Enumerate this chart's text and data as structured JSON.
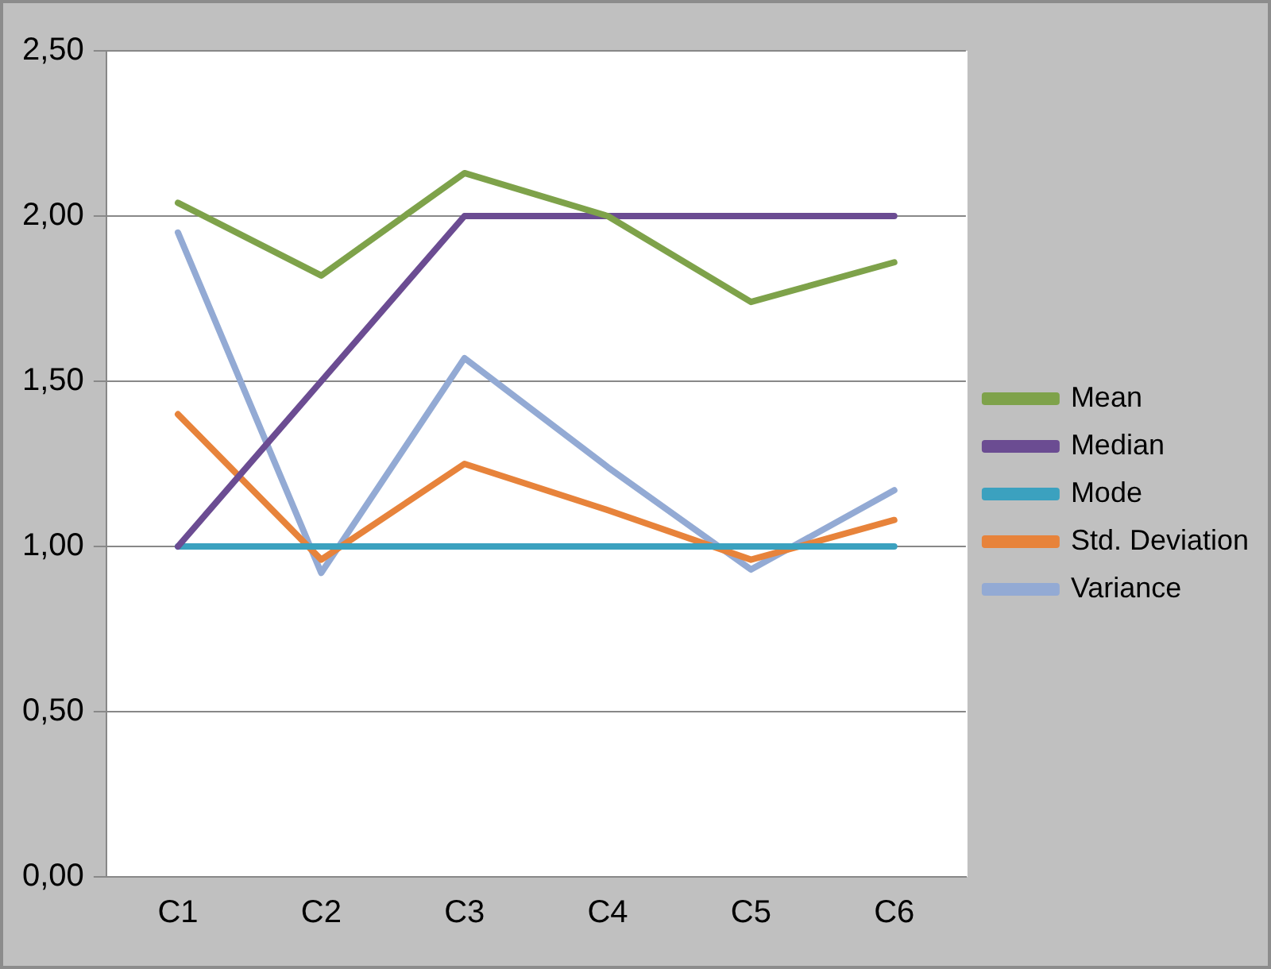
{
  "chart_data": {
    "type": "line",
    "categories": [
      "C1",
      "C2",
      "C3",
      "C4",
      "C5",
      "C6"
    ],
    "series": [
      {
        "name": "Mean",
        "color": "#7ea24a",
        "values": [
          2.04,
          1.82,
          2.13,
          2.0,
          1.74,
          1.86
        ]
      },
      {
        "name": "Median",
        "color": "#6b4c92",
        "values": [
          1.0,
          1.5,
          2.0,
          2.0,
          2.0,
          2.0
        ]
      },
      {
        "name": "Mode",
        "color": "#3ba1bf",
        "values": [
          1.0,
          1.0,
          1.0,
          1.0,
          1.0,
          1.0
        ]
      },
      {
        "name": "Std. Deviation",
        "color": "#e7833b",
        "values": [
          1.4,
          0.96,
          1.25,
          1.11,
          0.96,
          1.08
        ]
      },
      {
        "name": "Variance",
        "color": "#93aad4",
        "values": [
          1.95,
          0.92,
          1.57,
          1.24,
          0.93,
          1.17
        ]
      }
    ],
    "ylim": [
      0,
      2.5
    ],
    "yticks": [
      {
        "value": 0,
        "label": "0,00"
      },
      {
        "value": 0.5,
        "label": "0,50"
      },
      {
        "value": 1,
        "label": "1,00"
      },
      {
        "value": 1.5,
        "label": "1,50"
      },
      {
        "value": 2,
        "label": "2,00"
      },
      {
        "value": 2.5,
        "label": "2,50"
      }
    ],
    "grid": "y",
    "legend": "right",
    "marker": "none",
    "line_style": "solid"
  }
}
